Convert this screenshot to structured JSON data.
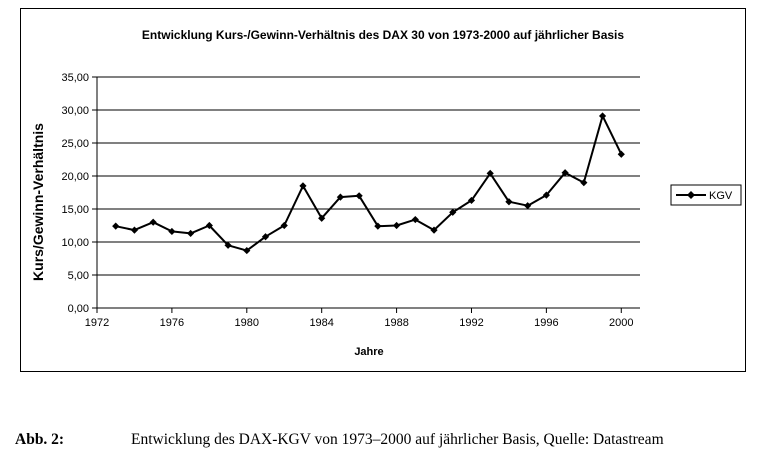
{
  "chart_data": {
    "type": "line",
    "title": "Entwicklung Kurs-/Gewinn-Verhältnis des DAX 30 von 1973-2000 auf jährlicher Basis",
    "xlabel": "Jahre",
    "ylabel": "Kurs/Gewinn-Verhältnis",
    "xlim": [
      1972,
      2001
    ],
    "ylim": [
      0,
      35
    ],
    "x_ticks": [
      "1972",
      "1976",
      "1980",
      "1984",
      "1988",
      "1992",
      "1996",
      "2000"
    ],
    "x_tick_values": [
      1972,
      1976,
      1980,
      1984,
      1988,
      1992,
      1996,
      2000
    ],
    "y_ticks": [
      "0,00",
      "5,00",
      "10,00",
      "15,00",
      "20,00",
      "25,00",
      "30,00",
      "35,00"
    ],
    "y_tick_values": [
      0,
      5,
      10,
      15,
      20,
      25,
      30,
      35
    ],
    "grid": true,
    "legend": "right",
    "x": [
      1973,
      1974,
      1975,
      1976,
      1977,
      1978,
      1979,
      1980,
      1981,
      1982,
      1983,
      1984,
      1985,
      1986,
      1987,
      1988,
      1989,
      1990,
      1991,
      1992,
      1993,
      1994,
      1995,
      1996,
      1997,
      1998,
      1999,
      2000
    ],
    "series": [
      {
        "name": "KGV",
        "color": "#000000",
        "marker": "diamond",
        "values": [
          12.4,
          11.8,
          13.0,
          11.6,
          11.3,
          12.5,
          9.5,
          8.7,
          10.8,
          12.5,
          18.5,
          13.6,
          16.8,
          17.0,
          12.4,
          12.5,
          13.4,
          11.8,
          14.5,
          16.3,
          20.4,
          16.1,
          15.5,
          17.1,
          20.5,
          19.0,
          29.1,
          23.3
        ]
      }
    ]
  },
  "caption": {
    "label": "Abb. 2:",
    "text": "Entwicklung des DAX-KGV von 1973–2000 auf jährlicher Basis, Quelle: Datastream"
  }
}
